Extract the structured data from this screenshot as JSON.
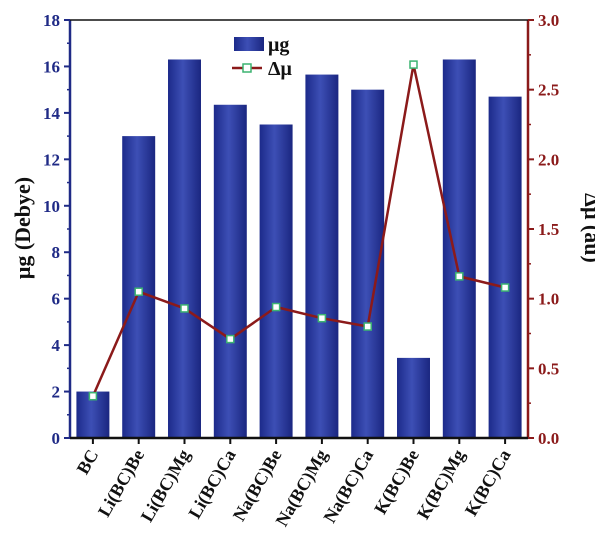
{
  "chart_data": {
    "type": "bar",
    "categories": [
      "BC",
      "Li(BC)Be",
      "Li(BC)Mg",
      "Li(BC)Ca",
      "Na(BC)Be",
      "Na(BC)Mg",
      "Na(BC)Ca",
      "K(BC)Be",
      "K(BC)Mg",
      "K(BC)Ca"
    ],
    "series": [
      {
        "name": "μg",
        "type": "bar",
        "axis": "left",
        "color": "#2b3a9a",
        "values": [
          2.0,
          13.0,
          16.3,
          14.35,
          13.5,
          15.65,
          15.0,
          3.45,
          16.3,
          14.7
        ]
      },
      {
        "name": "Δμ",
        "type": "line",
        "axis": "right",
        "color": "#8b1a1a",
        "marker_color": "#3cb371",
        "values": [
          0.3,
          1.05,
          0.93,
          0.71,
          0.94,
          0.86,
          0.8,
          2.68,
          1.16,
          1.08
        ]
      }
    ],
    "ylabel": "μg (Debye)",
    "ylabel_right": "Δμ (au)",
    "ylim": [
      0,
      18
    ],
    "ylim_right": [
      0,
      3.0
    ],
    "yticks": [
      "0",
      "2",
      "4",
      "6",
      "8",
      "10",
      "12",
      "14",
      "16",
      "18"
    ],
    "yticks_right": [
      "0.0",
      "0.5",
      "1.0",
      "1.5",
      "2.0",
      "2.5",
      "3.0"
    ],
    "legend_position": "top-center",
    "grid": false,
    "left_axis_color": "#1f2a86",
    "right_axis_color": "#8b1a1a"
  }
}
